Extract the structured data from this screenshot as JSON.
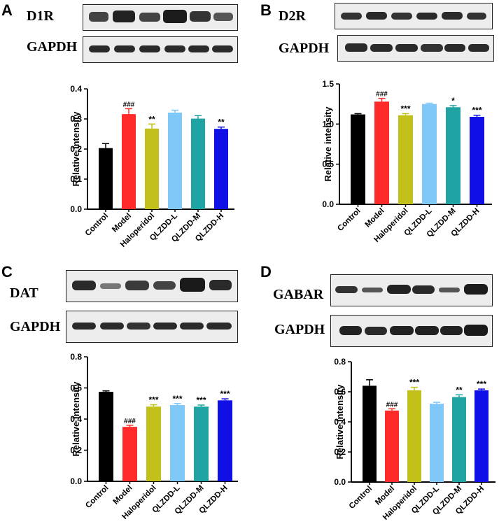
{
  "categories": [
    "Control",
    "Model",
    "Haloperidol",
    "QLZDD-L",
    "QLZDD-M",
    "QLZDD-H"
  ],
  "bar_colors": [
    "#000000",
    "#ff2a2a",
    "#c2c01a",
    "#7fc8f8",
    "#1fa3a3",
    "#1010e6"
  ],
  "ylabel": "Relative intensity",
  "panels": [
    {
      "letter": "A",
      "protein": "D1R",
      "loading": "GAPDH"
    },
    {
      "letter": "B",
      "protein": "D2R",
      "loading": "GAPDH"
    },
    {
      "letter": "C",
      "protein": "DAT",
      "loading": "GAPDH"
    },
    {
      "letter": "D",
      "protein": "GABAR",
      "loading": "GAPDH"
    }
  ],
  "chart_data": [
    {
      "type": "bar",
      "panel": "A",
      "categories": [
        "Control",
        "Model",
        "Haloperidol",
        "QLZDD-L",
        "QLZDD-M",
        "QLZDD-H"
      ],
      "values": [
        0.203,
        0.316,
        0.268,
        0.321,
        0.301,
        0.267
      ],
      "errors": [
        0.015,
        0.018,
        0.015,
        0.008,
        0.01,
        0.006
      ],
      "annotations": [
        "",
        "###",
        "**",
        "",
        "",
        "**"
      ],
      "ylabel": "Relative intensity",
      "ylim": [
        0.0,
        0.4
      ],
      "yticks": [
        "0.0",
        "0.1",
        "0.2",
        "0.3",
        "0.4"
      ]
    },
    {
      "type": "bar",
      "panel": "B",
      "categories": [
        "Control",
        "Model",
        "Haloperidol",
        "QLZDD-L",
        "QLZDD-M",
        "QLZDD-H"
      ],
      "values": [
        1.12,
        1.28,
        1.11,
        1.25,
        1.21,
        1.09
      ],
      "errors": [
        0.01,
        0.04,
        0.02,
        0.01,
        0.02,
        0.02
      ],
      "annotations": [
        "",
        "###",
        "***",
        "",
        "*",
        "***"
      ],
      "ylabel": "Relative intensity",
      "ylim": [
        0.0,
        1.5
      ],
      "yticks": [
        "0.0",
        "0.5",
        "1.0",
        "1.5"
      ]
    },
    {
      "type": "bar",
      "panel": "C",
      "categories": [
        "Control",
        "Model",
        "Haloperidol",
        "QLZDD-L",
        "QLZDD-M",
        "QLZDD-H"
      ],
      "values": [
        0.575,
        0.35,
        0.48,
        0.49,
        0.48,
        0.52
      ],
      "errors": [
        0.006,
        0.01,
        0.012,
        0.01,
        0.01,
        0.01
      ],
      "annotations": [
        "",
        "###",
        "***",
        "***",
        "***",
        "***"
      ],
      "ylabel": "Relative intensity",
      "ylim": [
        0.0,
        0.8
      ],
      "yticks": [
        "0.0",
        "0.2",
        "0.4",
        "0.6",
        "0.8"
      ]
    },
    {
      "type": "bar",
      "panel": "D",
      "categories": [
        "Control",
        "Model",
        "Haloperidol",
        "QLZDD-L",
        "QLZDD-M",
        "QLZDD-H"
      ],
      "values": [
        0.64,
        0.475,
        0.61,
        0.52,
        0.565,
        0.61
      ],
      "errors": [
        0.04,
        0.012,
        0.02,
        0.01,
        0.015,
        0.008
      ],
      "annotations": [
        "",
        "###",
        "***",
        "",
        "**",
        "***"
      ],
      "ylabel": "Relative intensity",
      "ylim": [
        0.0,
        0.8
      ],
      "yticks": [
        "0.0",
        "0.2",
        "0.4",
        "0.6",
        "0.8"
      ]
    }
  ]
}
